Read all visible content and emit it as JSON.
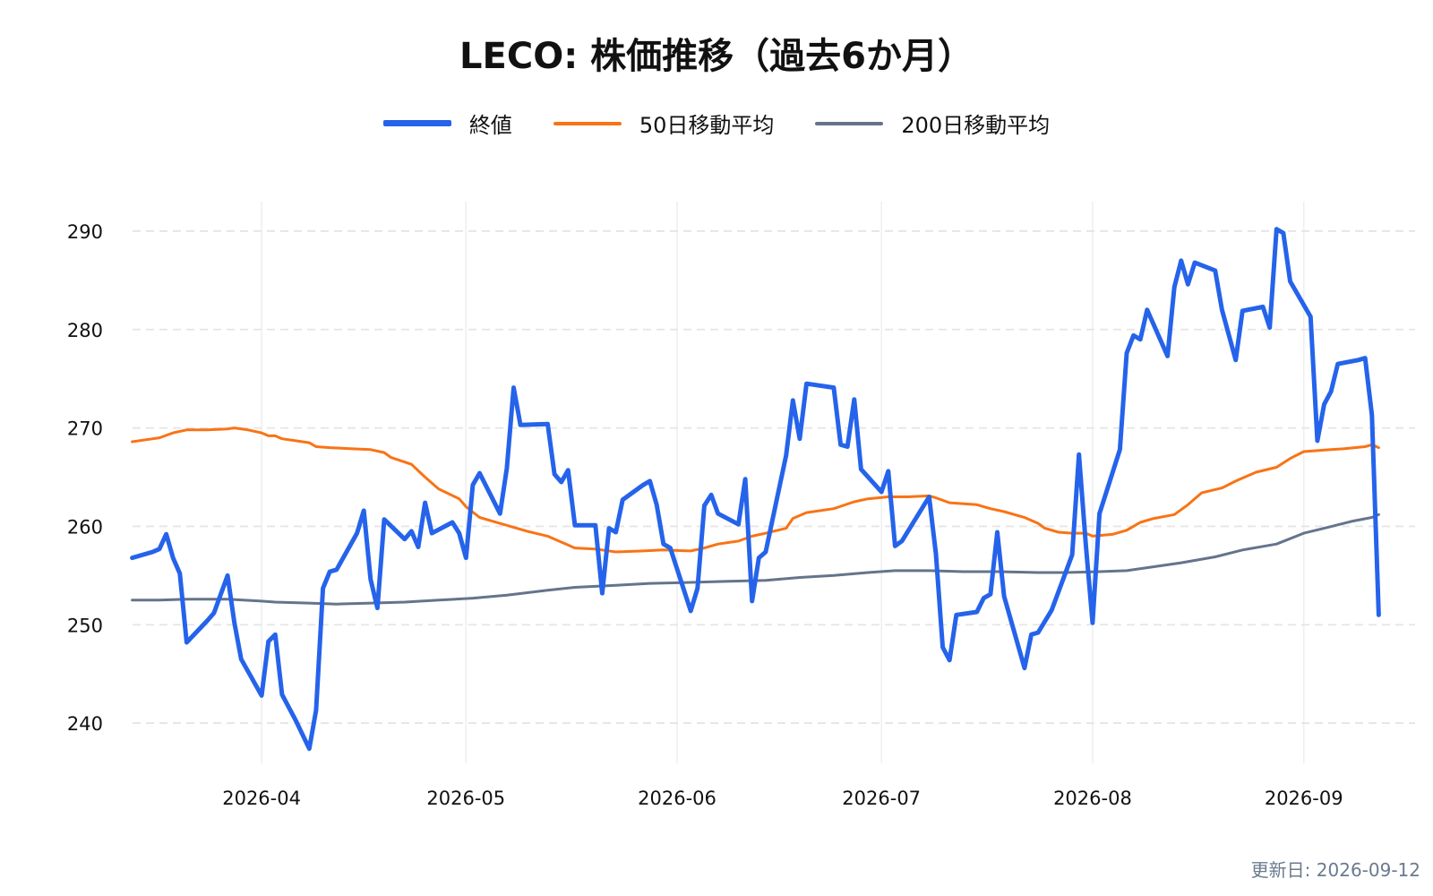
{
  "updated_label": "更新日: 2026-09-12",
  "colors": {
    "close": "#2563eb",
    "ma50": "#f97316",
    "ma200": "#64748b",
    "grid": "#e5e5e5"
  },
  "chart_data": {
    "type": "line",
    "title": "LECO: 株価推移（過去6か月）",
    "xlabel": "",
    "ylabel": "",
    "xlim": [
      "2026-03-12",
      "2026-09-18"
    ],
    "ylim": [
      235,
      293
    ],
    "x_ticks": [
      "2026-04",
      "2026-05",
      "2026-06",
      "2026-07",
      "2026-08",
      "2026-09"
    ],
    "y_ticks": [
      240,
      250,
      260,
      270,
      280,
      290
    ],
    "grid": true,
    "legend_position": "top-center",
    "series": [
      {
        "name": "終値",
        "color": "#2563eb",
        "points": [
          [
            "2026-03-13",
            256.8
          ],
          [
            "2026-03-16",
            257.4
          ],
          [
            "2026-03-17",
            257.7
          ],
          [
            "2026-03-18",
            259.2
          ],
          [
            "2026-03-19",
            256.8
          ],
          [
            "2026-03-20",
            255.2
          ],
          [
            "2026-03-21",
            248.2
          ],
          [
            "2026-03-24",
            250.4
          ],
          [
            "2026-03-25",
            251.2
          ],
          [
            "2026-03-27",
            255.0
          ],
          [
            "2026-03-28",
            250.2
          ],
          [
            "2026-03-29",
            246.5
          ],
          [
            "2026-04-01",
            242.8
          ],
          [
            "2026-04-02",
            248.3
          ],
          [
            "2026-04-03",
            249.0
          ],
          [
            "2026-04-04",
            242.9
          ],
          [
            "2026-04-06",
            240.3
          ],
          [
            "2026-04-08",
            237.4
          ],
          [
            "2026-04-09",
            241.3
          ],
          [
            "2026-04-10",
            253.7
          ],
          [
            "2026-04-11",
            255.4
          ],
          [
            "2026-04-12",
            255.6
          ],
          [
            "2026-04-15",
            259.3
          ],
          [
            "2026-04-16",
            261.6
          ],
          [
            "2026-04-17",
            254.6
          ],
          [
            "2026-04-18",
            251.7
          ],
          [
            "2026-04-19",
            260.7
          ],
          [
            "2026-04-22",
            258.7
          ],
          [
            "2026-04-23",
            259.5
          ],
          [
            "2026-04-24",
            257.9
          ],
          [
            "2026-04-25",
            262.4
          ],
          [
            "2026-04-26",
            259.3
          ],
          [
            "2026-04-29",
            260.4
          ],
          [
            "2026-04-30",
            259.3
          ],
          [
            "2026-05-01",
            256.8
          ],
          [
            "2026-05-02",
            264.2
          ],
          [
            "2026-05-03",
            265.4
          ],
          [
            "2026-05-06",
            261.3
          ],
          [
            "2026-05-07",
            265.9
          ],
          [
            "2026-05-08",
            274.1
          ],
          [
            "2026-05-09",
            270.3
          ],
          [
            "2026-05-13",
            270.4
          ],
          [
            "2026-05-14",
            265.3
          ],
          [
            "2026-05-15",
            264.5
          ],
          [
            "2026-05-16",
            265.7
          ],
          [
            "2026-05-17",
            260.1
          ],
          [
            "2026-05-20",
            260.1
          ],
          [
            "2026-05-21",
            253.2
          ],
          [
            "2026-05-22",
            259.8
          ],
          [
            "2026-05-23",
            259.4
          ],
          [
            "2026-05-24",
            262.7
          ],
          [
            "2026-05-27",
            264.2
          ],
          [
            "2026-05-28",
            264.6
          ],
          [
            "2026-05-29",
            262.2
          ],
          [
            "2026-05-30",
            258.2
          ],
          [
            "2026-05-31",
            257.8
          ],
          [
            "2026-06-03",
            251.4
          ],
          [
            "2026-06-04",
            253.7
          ],
          [
            "2026-06-05",
            262.1
          ],
          [
            "2026-06-06",
            263.2
          ],
          [
            "2026-06-07",
            261.3
          ],
          [
            "2026-06-10",
            260.2
          ],
          [
            "2026-06-11",
            264.8
          ],
          [
            "2026-06-12",
            252.4
          ],
          [
            "2026-06-13",
            256.8
          ],
          [
            "2026-06-14",
            257.4
          ],
          [
            "2026-06-17",
            267.2
          ],
          [
            "2026-06-18",
            272.8
          ],
          [
            "2026-06-19",
            268.9
          ],
          [
            "2026-06-20",
            274.5
          ],
          [
            "2026-06-24",
            274.1
          ],
          [
            "2026-06-25",
            268.3
          ],
          [
            "2026-06-26",
            268.1
          ],
          [
            "2026-06-27",
            272.9
          ],
          [
            "2026-06-28",
            265.8
          ],
          [
            "2026-07-01",
            263.5
          ],
          [
            "2026-07-02",
            265.6
          ],
          [
            "2026-07-03",
            258.0
          ],
          [
            "2026-07-04",
            258.5
          ],
          [
            "2026-07-08",
            263.0
          ],
          [
            "2026-07-09",
            257.2
          ],
          [
            "2026-07-10",
            247.7
          ],
          [
            "2026-07-11",
            246.4
          ],
          [
            "2026-07-12",
            251.0
          ],
          [
            "2026-07-15",
            251.3
          ],
          [
            "2026-07-16",
            252.7
          ],
          [
            "2026-07-17",
            253.1
          ],
          [
            "2026-07-18",
            259.4
          ],
          [
            "2026-07-19",
            252.9
          ],
          [
            "2026-07-22",
            245.6
          ],
          [
            "2026-07-23",
            249.0
          ],
          [
            "2026-07-24",
            249.2
          ],
          [
            "2026-07-26",
            251.5
          ],
          [
            "2026-07-29",
            257.1
          ],
          [
            "2026-07-30",
            267.3
          ],
          [
            "2026-07-31",
            258.2
          ],
          [
            "2026-08-01",
            250.2
          ],
          [
            "2026-08-02",
            261.3
          ],
          [
            "2026-08-05",
            267.8
          ],
          [
            "2026-08-06",
            277.6
          ],
          [
            "2026-08-07",
            279.4
          ],
          [
            "2026-08-08",
            279.0
          ],
          [
            "2026-08-09",
            282.0
          ],
          [
            "2026-08-12",
            277.3
          ],
          [
            "2026-08-13",
            284.3
          ],
          [
            "2026-08-14",
            287.0
          ],
          [
            "2026-08-15",
            284.6
          ],
          [
            "2026-08-16",
            286.8
          ],
          [
            "2026-08-19",
            286.0
          ],
          [
            "2026-08-20",
            282.0
          ],
          [
            "2026-08-22",
            276.9
          ],
          [
            "2026-08-23",
            281.9
          ],
          [
            "2026-08-26",
            282.3
          ],
          [
            "2026-08-27",
            280.2
          ],
          [
            "2026-08-28",
            290.2
          ],
          [
            "2026-08-29",
            289.8
          ],
          [
            "2026-08-30",
            284.9
          ],
          [
            "2026-09-02",
            281.3
          ],
          [
            "2026-09-03",
            268.7
          ],
          [
            "2026-09-04",
            272.4
          ],
          [
            "2026-09-05",
            273.7
          ],
          [
            "2026-09-06",
            276.5
          ],
          [
            "2026-09-09",
            276.9
          ],
          [
            "2026-09-10",
            277.1
          ],
          [
            "2026-09-11",
            271.3
          ],
          [
            "2026-09-12",
            251.0
          ]
        ]
      },
      {
        "name": "50日移動平均",
        "color": "#f97316",
        "points": [
          [
            "2026-03-13",
            268.6
          ],
          [
            "2026-03-15",
            268.8
          ],
          [
            "2026-03-17",
            269.0
          ],
          [
            "2026-03-19",
            269.5
          ],
          [
            "2026-03-21",
            269.8
          ],
          [
            "2026-03-24",
            269.8
          ],
          [
            "2026-03-27",
            269.9
          ],
          [
            "2026-03-28",
            270.0
          ],
          [
            "2026-03-30",
            269.8
          ],
          [
            "2026-04-01",
            269.5
          ],
          [
            "2026-04-02",
            269.2
          ],
          [
            "2026-04-03",
            269.2
          ],
          [
            "2026-04-04",
            268.9
          ],
          [
            "2026-04-06",
            268.7
          ],
          [
            "2026-04-08",
            268.5
          ],
          [
            "2026-04-09",
            268.1
          ],
          [
            "2026-04-11",
            268.0
          ],
          [
            "2026-04-14",
            267.9
          ],
          [
            "2026-04-17",
            267.8
          ],
          [
            "2026-04-19",
            267.5
          ],
          [
            "2026-04-20",
            267.0
          ],
          [
            "2026-04-23",
            266.3
          ],
          [
            "2026-04-25",
            265.0
          ],
          [
            "2026-04-27",
            263.8
          ],
          [
            "2026-04-30",
            262.8
          ],
          [
            "2026-05-01",
            262.0
          ],
          [
            "2026-05-03",
            260.9
          ],
          [
            "2026-05-05",
            260.5
          ],
          [
            "2026-05-07",
            260.1
          ],
          [
            "2026-05-10",
            259.5
          ],
          [
            "2026-05-13",
            259.0
          ],
          [
            "2026-05-15",
            258.4
          ],
          [
            "2026-05-17",
            257.8
          ],
          [
            "2026-05-20",
            257.7
          ],
          [
            "2026-05-23",
            257.4
          ],
          [
            "2026-05-27",
            257.5
          ],
          [
            "2026-05-30",
            257.6
          ],
          [
            "2026-06-03",
            257.5
          ],
          [
            "2026-06-05",
            257.8
          ],
          [
            "2026-06-07",
            258.2
          ],
          [
            "2026-06-10",
            258.5
          ],
          [
            "2026-06-12",
            259.0
          ],
          [
            "2026-06-14",
            259.3
          ],
          [
            "2026-06-17",
            259.8
          ],
          [
            "2026-06-18",
            260.8
          ],
          [
            "2026-06-20",
            261.4
          ],
          [
            "2026-06-24",
            261.8
          ],
          [
            "2026-06-27",
            262.5
          ],
          [
            "2026-06-29",
            262.8
          ],
          [
            "2026-07-02",
            263.0
          ],
          [
            "2026-07-05",
            263.0
          ],
          [
            "2026-07-08",
            263.1
          ],
          [
            "2026-07-09",
            262.9
          ],
          [
            "2026-07-11",
            262.4
          ],
          [
            "2026-07-15",
            262.2
          ],
          [
            "2026-07-17",
            261.8
          ],
          [
            "2026-07-19",
            261.5
          ],
          [
            "2026-07-22",
            260.9
          ],
          [
            "2026-07-24",
            260.3
          ],
          [
            "2026-07-25",
            259.8
          ],
          [
            "2026-07-27",
            259.4
          ],
          [
            "2026-07-29",
            259.3
          ],
          [
            "2026-07-31",
            259.3
          ],
          [
            "2026-08-01",
            259.0
          ],
          [
            "2026-08-04",
            259.2
          ],
          [
            "2026-08-06",
            259.6
          ],
          [
            "2026-08-08",
            260.4
          ],
          [
            "2026-08-10",
            260.8
          ],
          [
            "2026-08-13",
            261.2
          ],
          [
            "2026-08-15",
            262.2
          ],
          [
            "2026-08-17",
            263.4
          ],
          [
            "2026-08-20",
            263.9
          ],
          [
            "2026-08-22",
            264.6
          ],
          [
            "2026-08-24",
            265.2
          ],
          [
            "2026-08-25",
            265.5
          ],
          [
            "2026-08-28",
            266.0
          ],
          [
            "2026-08-30",
            266.9
          ],
          [
            "2026-09-01",
            267.6
          ],
          [
            "2026-09-03",
            267.7
          ],
          [
            "2026-09-05",
            267.8
          ],
          [
            "2026-09-07",
            267.9
          ],
          [
            "2026-09-10",
            268.1
          ],
          [
            "2026-09-11",
            268.3
          ],
          [
            "2026-09-12",
            268.0
          ]
        ]
      },
      {
        "name": "200日移動平均",
        "color": "#64748b",
        "points": [
          [
            "2026-03-13",
            252.5
          ],
          [
            "2026-03-17",
            252.5
          ],
          [
            "2026-03-21",
            252.6
          ],
          [
            "2026-03-27",
            252.6
          ],
          [
            "2026-04-01",
            252.4
          ],
          [
            "2026-04-03",
            252.3
          ],
          [
            "2026-04-08",
            252.2
          ],
          [
            "2026-04-12",
            252.1
          ],
          [
            "2026-04-17",
            252.2
          ],
          [
            "2026-04-22",
            252.3
          ],
          [
            "2026-04-27",
            252.5
          ],
          [
            "2026-05-02",
            252.7
          ],
          [
            "2026-05-07",
            253.0
          ],
          [
            "2026-05-13",
            253.5
          ],
          [
            "2026-05-17",
            253.8
          ],
          [
            "2026-05-23",
            254.0
          ],
          [
            "2026-05-28",
            254.2
          ],
          [
            "2026-06-03",
            254.3
          ],
          [
            "2026-06-08",
            254.4
          ],
          [
            "2026-06-14",
            254.5
          ],
          [
            "2026-06-19",
            254.8
          ],
          [
            "2026-06-24",
            255.0
          ],
          [
            "2026-06-29",
            255.3
          ],
          [
            "2026-07-03",
            255.5
          ],
          [
            "2026-07-08",
            255.5
          ],
          [
            "2026-07-13",
            255.4
          ],
          [
            "2026-07-18",
            255.4
          ],
          [
            "2026-07-24",
            255.3
          ],
          [
            "2026-07-28",
            255.3
          ],
          [
            "2026-08-02",
            255.4
          ],
          [
            "2026-08-06",
            255.5
          ],
          [
            "2026-08-10",
            255.9
          ],
          [
            "2026-08-14",
            256.3
          ],
          [
            "2026-08-19",
            256.9
          ],
          [
            "2026-08-23",
            257.6
          ],
          [
            "2026-08-28",
            258.2
          ],
          [
            "2026-09-01",
            259.3
          ],
          [
            "2026-09-04",
            259.8
          ],
          [
            "2026-09-08",
            260.5
          ],
          [
            "2026-09-11",
            260.9
          ],
          [
            "2026-09-12",
            261.2
          ]
        ]
      }
    ]
  }
}
